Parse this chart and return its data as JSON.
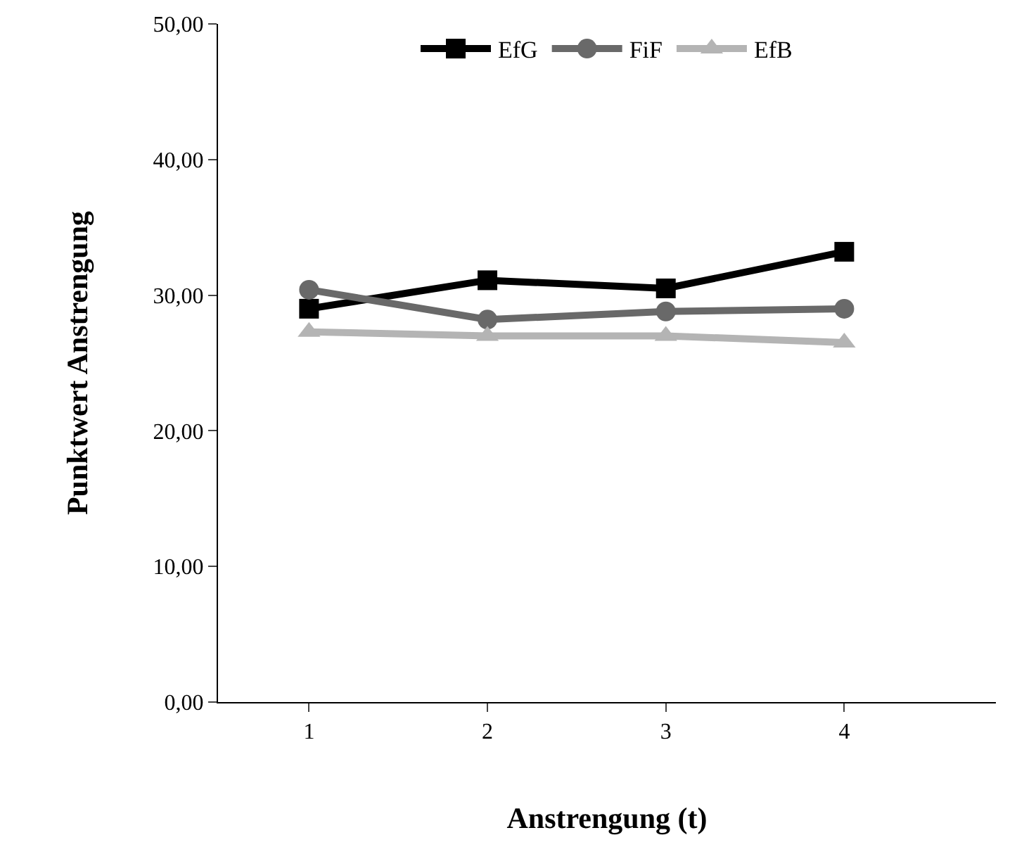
{
  "chart_data": {
    "type": "line",
    "xlabel": "Anstrengung (t)",
    "ylabel": "Punktwert Anstrengung",
    "categories": [
      "1",
      "2",
      "3",
      "4"
    ],
    "series": [
      {
        "name": "EfG",
        "color": "#000000",
        "marker": "square",
        "values": [
          29.0,
          31.1,
          30.5,
          33.2
        ]
      },
      {
        "name": "FiF",
        "color": "#696969",
        "marker": "circle",
        "values": [
          30.4,
          28.2,
          28.8,
          29.0
        ]
      },
      {
        "name": "EfB",
        "color": "#b4b4b4",
        "marker": "triangle",
        "values": [
          27.3,
          27.0,
          27.0,
          26.5
        ]
      }
    ],
    "ylim": [
      0,
      50
    ],
    "yticks": [
      {
        "value": 0,
        "label": "0,00"
      },
      {
        "value": 10,
        "label": "10,00"
      },
      {
        "value": 20,
        "label": "20,00"
      },
      {
        "value": 30,
        "label": "30,00"
      },
      {
        "value": 40,
        "label": "40,00"
      },
      {
        "value": 50,
        "label": "50,00"
      }
    ],
    "grid": false,
    "legend": "top",
    "line_style": "solid"
  }
}
